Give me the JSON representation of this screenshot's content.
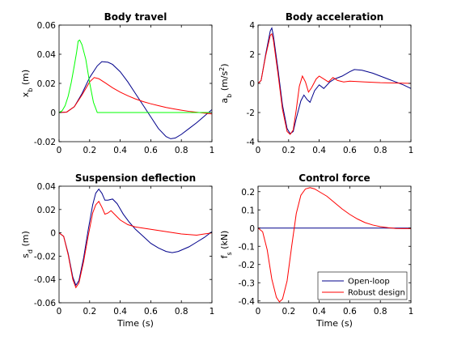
{
  "chart_data": [
    {
      "type": "line",
      "title": "Body travel",
      "xlabel": "",
      "ylabel": "x_b (m)",
      "xlim": [
        0,
        1
      ],
      "ylim": [
        -0.02,
        0.06
      ],
      "xticks": [
        "0",
        "0.2",
        "0.4",
        "0.6",
        "0.8",
        "1"
      ],
      "yticks": [
        "-0.02",
        "0",
        "0.02",
        "0.04",
        "0.06"
      ],
      "series": [
        {
          "color": "#00008b",
          "points": [
            [
              0,
              0
            ],
            [
              0.05,
              0.0003
            ],
            [
              0.1,
              0.004
            ],
            [
              0.15,
              0.013
            ],
            [
              0.2,
              0.024
            ],
            [
              0.25,
              0.032
            ],
            [
              0.28,
              0.0349
            ],
            [
              0.32,
              0.0345
            ],
            [
              0.35,
              0.033
            ],
            [
              0.4,
              0.028
            ],
            [
              0.45,
              0.021
            ],
            [
              0.5,
              0.013
            ],
            [
              0.55,
              0.005
            ],
            [
              0.6,
              -0.003
            ],
            [
              0.65,
              -0.011
            ],
            [
              0.7,
              -0.0165
            ],
            [
              0.73,
              -0.018
            ],
            [
              0.76,
              -0.0175
            ],
            [
              0.8,
              -0.015
            ],
            [
              0.85,
              -0.011
            ],
            [
              0.9,
              -0.007
            ],
            [
              0.95,
              -0.0025
            ],
            [
              1.0,
              0.002
            ]
          ]
        },
        {
          "color": "#ff0000",
          "points": [
            [
              0,
              0
            ],
            [
              0.05,
              0.0003
            ],
            [
              0.1,
              0.004
            ],
            [
              0.15,
              0.012
            ],
            [
              0.2,
              0.021
            ],
            [
              0.23,
              0.024
            ],
            [
              0.26,
              0.0232
            ],
            [
              0.3,
              0.0205
            ],
            [
              0.35,
              0.017
            ],
            [
              0.4,
              0.014
            ],
            [
              0.45,
              0.0115
            ],
            [
              0.5,
              0.0093
            ],
            [
              0.55,
              0.0075
            ],
            [
              0.6,
              0.006
            ],
            [
              0.65,
              0.0047
            ],
            [
              0.7,
              0.0035
            ],
            [
              0.75,
              0.0025
            ],
            [
              0.8,
              0.0016
            ],
            [
              0.85,
              0.0008
            ],
            [
              0.9,
              0.0002
            ],
            [
              0.95,
              -0.0004
            ],
            [
              1.0,
              -0.001
            ]
          ]
        },
        {
          "color": "#00ff00",
          "points": [
            [
              0,
              0
            ],
            [
              0.02,
              0.0012
            ],
            [
              0.04,
              0.0048
            ],
            [
              0.06,
              0.0113
            ],
            [
              0.08,
              0.0207
            ],
            [
              0.1,
              0.0323
            ],
            [
              0.115,
              0.0415
            ],
            [
              0.125,
              0.049
            ],
            [
              0.135,
              0.0497
            ],
            [
              0.15,
              0.0465
            ],
            [
              0.175,
              0.0365
            ],
            [
              0.2,
              0.0205
            ],
            [
              0.225,
              0.007
            ],
            [
              0.25,
              0
            ],
            [
              1.0,
              0
            ]
          ]
        }
      ]
    },
    {
      "type": "line",
      "title": "Body acceleration",
      "xlabel": "",
      "ylabel": "a_b (m/s^2)",
      "xlim": [
        0,
        1
      ],
      "ylim": [
        -4,
        4
      ],
      "xticks": [
        "0",
        "0.2",
        "0.4",
        "0.6",
        "0.8",
        "1"
      ],
      "yticks": [
        "-4",
        "-2",
        "0",
        "2",
        "4"
      ],
      "series": [
        {
          "color": "#00008b",
          "points": [
            [
              0,
              0
            ],
            [
              0.02,
              0.2
            ],
            [
              0.05,
              2.0
            ],
            [
              0.08,
              3.6
            ],
            [
              0.09,
              3.8
            ],
            [
              0.1,
              3.3
            ],
            [
              0.13,
              1.0
            ],
            [
              0.16,
              -1.5
            ],
            [
              0.19,
              -3.1
            ],
            [
              0.21,
              -3.45
            ],
            [
              0.23,
              -3.3
            ],
            [
              0.25,
              -2.4
            ],
            [
              0.28,
              -1.2
            ],
            [
              0.3,
              -0.8
            ],
            [
              0.32,
              -1.1
            ],
            [
              0.34,
              -1.3
            ],
            [
              0.37,
              -0.5
            ],
            [
              0.4,
              -0.1
            ],
            [
              0.43,
              -0.35
            ],
            [
              0.47,
              0.1
            ],
            [
              0.5,
              0.3
            ],
            [
              0.55,
              0.5
            ],
            [
              0.6,
              0.8
            ],
            [
              0.63,
              0.95
            ],
            [
              0.68,
              0.9
            ],
            [
              0.75,
              0.7
            ],
            [
              0.8,
              0.5
            ],
            [
              0.85,
              0.3
            ],
            [
              0.9,
              0.1
            ],
            [
              0.95,
              -0.1
            ],
            [
              1.0,
              -0.35
            ]
          ]
        },
        {
          "color": "#ff0000",
          "points": [
            [
              0,
              0
            ],
            [
              0.02,
              0.2
            ],
            [
              0.05,
              1.9
            ],
            [
              0.08,
              3.3
            ],
            [
              0.09,
              3.4
            ],
            [
              0.1,
              3.0
            ],
            [
              0.13,
              0.7
            ],
            [
              0.16,
              -1.8
            ],
            [
              0.19,
              -3.3
            ],
            [
              0.21,
              -3.5
            ],
            [
              0.23,
              -3.2
            ],
            [
              0.25,
              -1.8
            ],
            [
              0.27,
              -0.2
            ],
            [
              0.29,
              0.5
            ],
            [
              0.31,
              0.1
            ],
            [
              0.33,
              -0.6
            ],
            [
              0.35,
              -0.3
            ],
            [
              0.38,
              0.3
            ],
            [
              0.4,
              0.5
            ],
            [
              0.43,
              0.3
            ],
            [
              0.46,
              0.1
            ],
            [
              0.49,
              0.4
            ],
            [
              0.52,
              0.2
            ],
            [
              0.56,
              0.1
            ],
            [
              0.6,
              0.15
            ],
            [
              0.7,
              0.1
            ],
            [
              0.8,
              0.05
            ],
            [
              1.0,
              0
            ]
          ]
        }
      ]
    },
    {
      "type": "line",
      "title": "Suspension deflection",
      "xlabel": "Time (s)",
      "ylabel": "s_d (m)",
      "xlim": [
        0,
        1
      ],
      "ylim": [
        -0.06,
        0.04
      ],
      "xticks": [
        "0",
        "0.2",
        "0.4",
        "0.6",
        "0.8",
        "1"
      ],
      "yticks": [
        "-0.06",
        "-0.04",
        "-0.02",
        "0",
        "0.02",
        "0.04"
      ],
      "series": [
        {
          "color": "#00008b",
          "points": [
            [
              0,
              0
            ],
            [
              0.03,
              -0.003
            ],
            [
              0.06,
              -0.018
            ],
            [
              0.09,
              -0.038
            ],
            [
              0.11,
              -0.045
            ],
            [
              0.13,
              -0.041
            ],
            [
              0.16,
              -0.022
            ],
            [
              0.19,
              0.002
            ],
            [
              0.22,
              0.024
            ],
            [
              0.24,
              0.034
            ],
            [
              0.26,
              0.0375
            ],
            [
              0.28,
              0.034
            ],
            [
              0.3,
              0.028
            ],
            [
              0.32,
              0.028
            ],
            [
              0.35,
              0.029
            ],
            [
              0.38,
              0.025
            ],
            [
              0.42,
              0.016
            ],
            [
              0.46,
              0.009
            ],
            [
              0.5,
              0.003
            ],
            [
              0.55,
              -0.003
            ],
            [
              0.6,
              -0.009
            ],
            [
              0.65,
              -0.013
            ],
            [
              0.7,
              -0.016
            ],
            [
              0.74,
              -0.017
            ],
            [
              0.78,
              -0.016
            ],
            [
              0.85,
              -0.012
            ],
            [
              0.9,
              -0.008
            ],
            [
              0.95,
              -0.004
            ],
            [
              1.0,
              0.001
            ]
          ]
        },
        {
          "color": "#ff0000",
          "points": [
            [
              0,
              0
            ],
            [
              0.03,
              -0.003
            ],
            [
              0.06,
              -0.019
            ],
            [
              0.09,
              -0.04
            ],
            [
              0.11,
              -0.047
            ],
            [
              0.13,
              -0.043
            ],
            [
              0.16,
              -0.025
            ],
            [
              0.19,
              -0.003
            ],
            [
              0.22,
              0.017
            ],
            [
              0.24,
              0.024
            ],
            [
              0.26,
              0.027
            ],
            [
              0.28,
              0.022
            ],
            [
              0.3,
              0.016
            ],
            [
              0.32,
              0.017
            ],
            [
              0.34,
              0.019
            ],
            [
              0.37,
              0.015
            ],
            [
              0.4,
              0.011
            ],
            [
              0.45,
              0.007
            ],
            [
              0.5,
              0.005
            ],
            [
              0.6,
              0.003
            ],
            [
              0.7,
              0.001
            ],
            [
              0.8,
              -0.001
            ],
            [
              0.9,
              -0.002
            ],
            [
              1.0,
              0
            ]
          ]
        }
      ]
    },
    {
      "type": "line",
      "title": "Control force",
      "xlabel": "Time (s)",
      "ylabel": "f_s (kN)",
      "xlim": [
        0,
        1
      ],
      "ylim": [
        -0.41,
        0.23
      ],
      "xticks": [
        "0",
        "0.2",
        "0.4",
        "0.6",
        "0.8",
        "1"
      ],
      "yticks": [
        "-0.4",
        "-0.3",
        "-0.2",
        "-0.1",
        "0",
        "0.1",
        "0.2"
      ],
      "legend": {
        "location": "bottom-right",
        "entries": [
          "Open-loop",
          "Robust design"
        ]
      },
      "series": [
        {
          "name": "Open-loop",
          "color": "#00008b",
          "points": [
            [
              0,
              0
            ],
            [
              1.0,
              0
            ]
          ]
        },
        {
          "name": "Robust design",
          "color": "#ff0000",
          "points": [
            [
              0,
              0
            ],
            [
              0.03,
              -0.02
            ],
            [
              0.06,
              -0.12
            ],
            [
              0.09,
              -0.28
            ],
            [
              0.12,
              -0.38
            ],
            [
              0.14,
              -0.405
            ],
            [
              0.16,
              -0.39
            ],
            [
              0.19,
              -0.29
            ],
            [
              0.22,
              -0.1
            ],
            [
              0.25,
              0.08
            ],
            [
              0.28,
              0.18
            ],
            [
              0.31,
              0.215
            ],
            [
              0.34,
              0.222
            ],
            [
              0.37,
              0.215
            ],
            [
              0.4,
              0.2
            ],
            [
              0.45,
              0.175
            ],
            [
              0.5,
              0.14
            ],
            [
              0.55,
              0.105
            ],
            [
              0.6,
              0.075
            ],
            [
              0.65,
              0.05
            ],
            [
              0.7,
              0.03
            ],
            [
              0.75,
              0.017
            ],
            [
              0.8,
              0.008
            ],
            [
              0.85,
              0.002
            ],
            [
              0.9,
              -0.002
            ],
            [
              0.95,
              -0.003
            ],
            [
              1.0,
              -0.003
            ]
          ]
        }
      ]
    }
  ]
}
